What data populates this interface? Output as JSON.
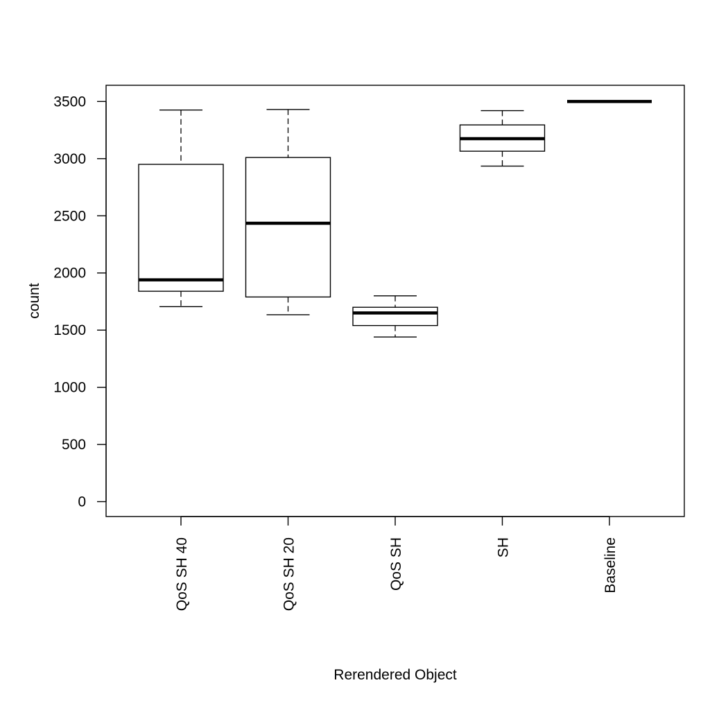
{
  "chart_data": {
    "type": "box",
    "title": "",
    "xlabel": "Rerendered Object",
    "ylabel": "count",
    "ylim": [
      -140,
      3650
    ],
    "yticks": [
      0,
      500,
      1000,
      1500,
      2000,
      2500,
      3000,
      3500
    ],
    "grid": false,
    "legend": "none",
    "categories": [
      "QoS SH 40",
      "QoS SH 20",
      "QoS SH",
      "SH",
      "Baseline"
    ],
    "boxes": [
      {
        "category": "QoS SH 40",
        "min": 1705,
        "q1": 1840,
        "median": 1940,
        "q3": 2950,
        "max": 3425
      },
      {
        "category": "QoS SH 20",
        "min": 1635,
        "q1": 1790,
        "median": 2435,
        "q3": 3010,
        "max": 3430
      },
      {
        "category": "QoS SH",
        "min": 1440,
        "q1": 1540,
        "median": 1650,
        "q3": 1700,
        "max": 1800
      },
      {
        "category": "SH",
        "min": 2935,
        "q1": 3065,
        "median": 3175,
        "q3": 3295,
        "max": 3420
      },
      {
        "category": "Baseline",
        "min": 3500,
        "q1": 3500,
        "median": 3500,
        "q3": 3500,
        "max": 3500
      }
    ],
    "colors": {
      "box_fill": "#ffffff",
      "line": "#000000"
    }
  }
}
